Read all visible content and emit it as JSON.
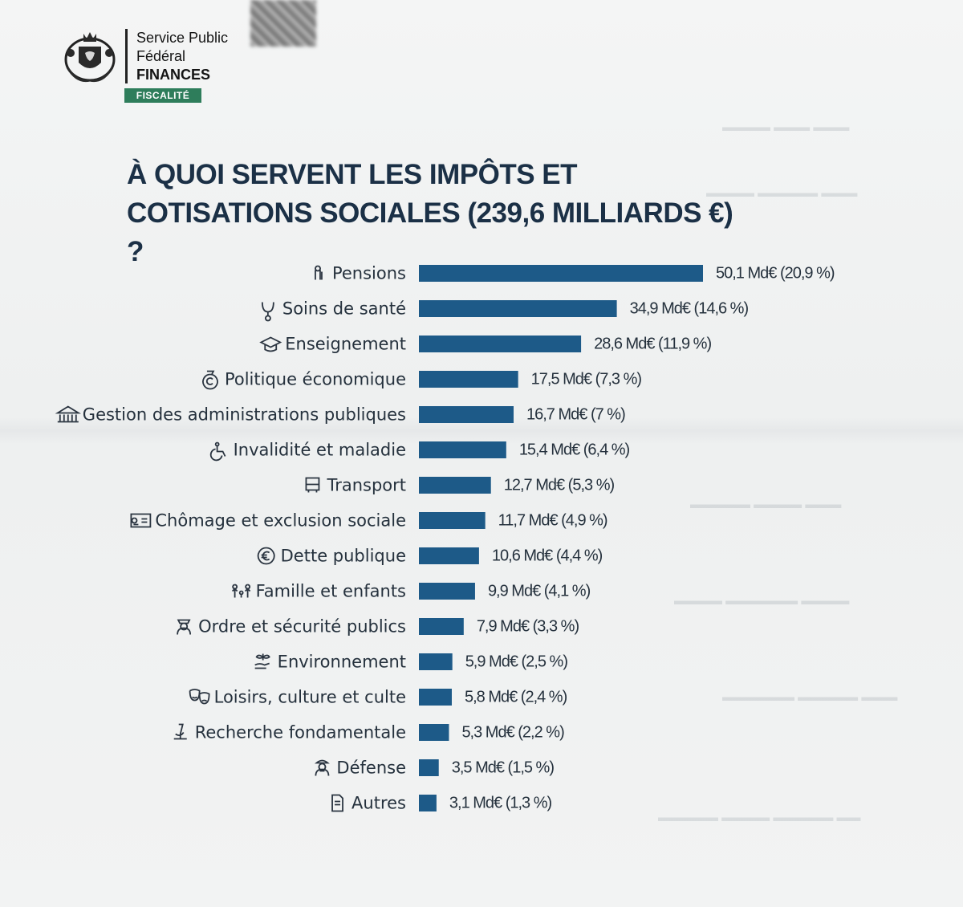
{
  "header": {
    "org_line1": "Service Public",
    "org_line2": "Fédéral",
    "org_line3": "FINANCES",
    "badge": "FISCALITÉ",
    "badge_color": "#2e7d5b"
  },
  "chart_data": {
    "type": "bar",
    "orientation": "horizontal",
    "title": "À QUOI SERVENT LES IMPÔTS ET COTISATIONS SOCIALES (239,6 MILLIARDS €) ?",
    "unit": "Md€",
    "bar_color": "#1d5a88",
    "xlim": [
      0,
      50.1
    ],
    "categories": [
      "Pensions",
      "Soins de santé",
      "Enseignement",
      "Politique économique",
      "Gestion des administrations publiques",
      "Invalidité et maladie",
      "Transport",
      "Chômage et exclusion sociale",
      "Dette publique",
      "Famille et enfants",
      "Ordre et sécurité publics",
      "Environnement",
      "Loisirs, culture et culte",
      "Recherche fondamentale",
      "Défense",
      "Autres"
    ],
    "values": [
      50.1,
      34.9,
      28.6,
      17.5,
      16.7,
      15.4,
      12.7,
      11.7,
      10.6,
      9.9,
      7.9,
      5.9,
      5.8,
      5.3,
      3.5,
      3.1
    ],
    "percentages": [
      20.9,
      14.6,
      11.9,
      7.3,
      7,
      6.4,
      5.3,
      4.9,
      4.4,
      4.1,
      3.3,
      2.5,
      2.4,
      2.2,
      1.5,
      1.3
    ],
    "data_labels": [
      "50,1 Md€ (20,9 %)",
      "34,9 Md€ (14,6 %)",
      "28,6 Md€ (11,9 %)",
      "17,5 Md€ (7,3 %)",
      "16,7 Md€ (7 %)",
      "15,4 Md€ (6,4 %)",
      "12,7 Md€ (5,3 %)",
      "11,7 Md€ (4,9 %)",
      "10,6 Md€ (4,4 %)",
      "9,9 Md€ (4,1 %)",
      "7,9 Md€ (3,3 %)",
      "5,9 Md€ (2,5 %)",
      "5,8 Md€ (2,4 %)",
      "5,3 Md€ (2,2 %)",
      "3,5 Md€ (1,5 %)",
      "3,1 Md€ (1,3 %)"
    ],
    "icons": [
      "elderly-person-icon",
      "stethoscope-icon",
      "graduation-cap-icon",
      "money-bag-icon",
      "government-building-icon",
      "wheelchair-icon",
      "bus-icon",
      "job-card-icon",
      "euro-coin-icon",
      "family-icon",
      "police-officer-icon",
      "plant-hand-icon",
      "theater-masks-icon",
      "microscope-icon",
      "soldier-icon",
      "document-icon"
    ],
    "grid": false,
    "legend": "none"
  }
}
